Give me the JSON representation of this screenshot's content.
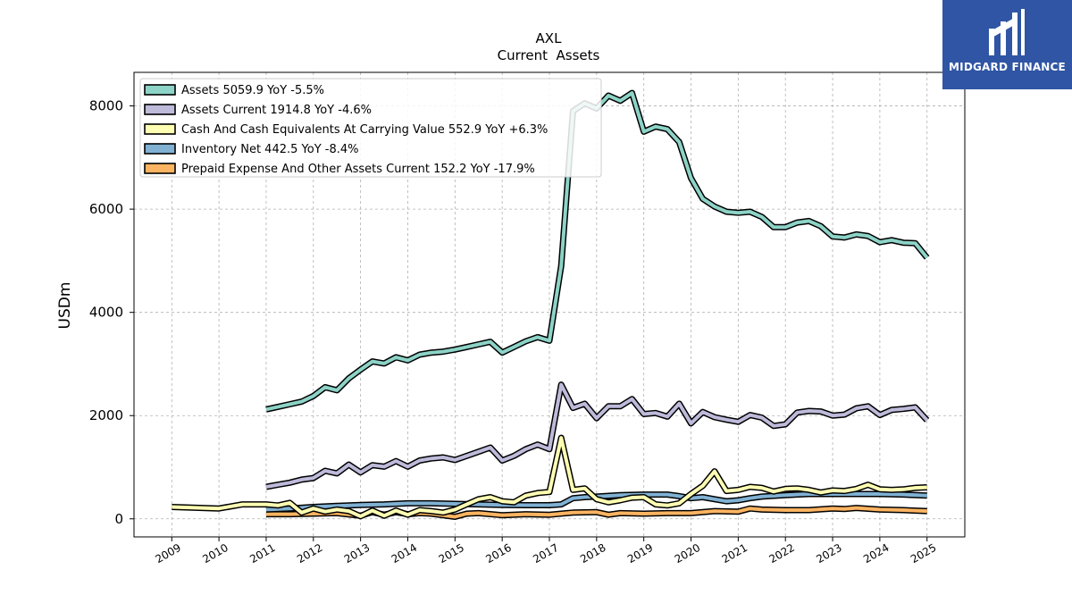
{
  "logo": {
    "text": "MIDGARD FINANCE",
    "icon": "midgard-logo-icon",
    "background": "#2f55a4"
  },
  "chart_data": {
    "type": "line",
    "title": "AXL",
    "subtitle": "Current  Assets",
    "ylabel": "USDm",
    "xlabel": "",
    "ylim": [
      -350,
      8650
    ],
    "xlim": [
      2008.2,
      2025.8
    ],
    "yticks": [
      0,
      2000,
      4000,
      6000,
      8000
    ],
    "xticks": [
      "2009",
      "2010",
      "2011",
      "2012",
      "2013",
      "2014",
      "2015",
      "2016",
      "2017",
      "2018",
      "2019",
      "2020",
      "2021",
      "2022",
      "2023",
      "2024",
      "2025"
    ],
    "grid": true,
    "legend_position": "top-left",
    "series": [
      {
        "name": "Assets",
        "legend": "Assets  5059.9 YoY -5.5%",
        "color": "#8dd3c7",
        "x": [
          2011.0,
          2011.25,
          2011.5,
          2011.75,
          2012.0,
          2012.25,
          2012.5,
          2012.75,
          2013.0,
          2013.25,
          2013.5,
          2013.75,
          2014.0,
          2014.25,
          2014.5,
          2014.75,
          2015.0,
          2015.25,
          2015.5,
          2015.75,
          2016.0,
          2016.25,
          2016.5,
          2016.75,
          2017.0,
          2017.25,
          2017.5,
          2017.75,
          2018.0,
          2018.25,
          2018.5,
          2018.75,
          2019.0,
          2019.25,
          2019.5,
          2019.75,
          2020.0,
          2020.25,
          2020.5,
          2020.75,
          2021.0,
          2021.25,
          2021.5,
          2021.75,
          2022.0,
          2022.25,
          2022.5,
          2022.75,
          2023.0,
          2023.25,
          2023.5,
          2023.75,
          2024.0,
          2024.25,
          2024.5,
          2024.75,
          2025.0
        ],
        "y": [
          2120,
          2170,
          2220,
          2270,
          2380,
          2550,
          2490,
          2720,
          2890,
          3050,
          3010,
          3130,
          3070,
          3180,
          3220,
          3240,
          3280,
          3330,
          3380,
          3430,
          3220,
          3330,
          3440,
          3520,
          3450,
          4900,
          7900,
          8050,
          7950,
          8200,
          8100,
          8250,
          7500,
          7600,
          7550,
          7300,
          6600,
          6200,
          6050,
          5950,
          5930,
          5950,
          5850,
          5650,
          5650,
          5740,
          5770,
          5670,
          5470,
          5450,
          5510,
          5480,
          5360,
          5400,
          5350,
          5340,
          5060
        ]
      },
      {
        "name": "Assets Current",
        "legend": "Assets Current  1914.8 YoY -4.6%",
        "color": "#bebada",
        "x": [
          2011.0,
          2011.25,
          2011.5,
          2011.75,
          2012.0,
          2012.25,
          2012.5,
          2012.75,
          2013.0,
          2013.25,
          2013.5,
          2013.75,
          2014.0,
          2014.25,
          2014.5,
          2014.75,
          2015.0,
          2015.25,
          2015.5,
          2015.75,
          2016.0,
          2016.25,
          2016.5,
          2016.75,
          2017.0,
          2017.25,
          2017.5,
          2017.75,
          2018.0,
          2018.25,
          2018.5,
          2018.75,
          2019.0,
          2019.25,
          2019.5,
          2019.75,
          2020.0,
          2020.25,
          2020.5,
          2020.75,
          2021.0,
          2021.25,
          2021.5,
          2021.75,
          2022.0,
          2022.25,
          2022.5,
          2022.75,
          2023.0,
          2023.25,
          2023.5,
          2023.75,
          2024.0,
          2024.25,
          2024.5,
          2024.75,
          2025.0
        ],
        "y": [
          620,
          660,
          700,
          760,
          790,
          930,
          880,
          1050,
          900,
          1040,
          1010,
          1120,
          1010,
          1130,
          1170,
          1190,
          1140,
          1220,
          1300,
          1380,
          1130,
          1220,
          1350,
          1440,
          1350,
          2600,
          2150,
          2230,
          1950,
          2180,
          2180,
          2320,
          2030,
          2050,
          1980,
          2230,
          1850,
          2070,
          1970,
          1920,
          1880,
          2010,
          1960,
          1800,
          1830,
          2060,
          2090,
          2080,
          2000,
          2020,
          2140,
          2180,
          2010,
          2110,
          2130,
          2160,
          1910
        ]
      },
      {
        "name": "Cash And Cash Equivalents At Carrying Value",
        "legend": "Cash And Cash Equivalents At Carrying Value  552.9 YoY +6.3%",
        "color": "#ffffb3",
        "x": [
          2009.0,
          2010.0,
          2010.5,
          2011.0,
          2011.25,
          2011.5,
          2011.75,
          2012.0,
          2012.25,
          2012.5,
          2012.75,
          2013.0,
          2013.25,
          2013.5,
          2013.75,
          2014.0,
          2014.25,
          2014.5,
          2014.75,
          2015.0,
          2015.25,
          2015.5,
          2015.75,
          2016.0,
          2016.25,
          2016.5,
          2016.75,
          2017.0,
          2017.25,
          2017.5,
          2017.75,
          2018.0,
          2018.25,
          2018.5,
          2018.75,
          2019.0,
          2019.25,
          2019.5,
          2019.75,
          2020.0,
          2020.25,
          2020.5,
          2020.75,
          2021.0,
          2021.25,
          2021.5,
          2021.75,
          2022.0,
          2022.25,
          2022.5,
          2022.75,
          2023.0,
          2023.25,
          2023.5,
          2023.75,
          2024.0,
          2024.25,
          2024.5,
          2024.75,
          2025.0
        ],
        "y": [
          230,
          200,
          280,
          280,
          260,
          310,
          120,
          200,
          140,
          180,
          150,
          50,
          160,
          60,
          160,
          80,
          170,
          150,
          120,
          180,
          280,
          380,
          420,
          340,
          320,
          450,
          500,
          520,
          1570,
          560,
          590,
          380,
          320,
          360,
          410,
          420,
          280,
          260,
          300,
          480,
          640,
          920,
          540,
          560,
          620,
          600,
          530,
          580,
          590,
          560,
          510,
          550,
          540,
          580,
          660,
          570,
          560,
          570,
          600,
          610
        ]
      },
      {
        "name": "Inventory Net",
        "legend": "Inventory Net  442.5 YoY -8.4%",
        "color": "#80b1d3",
        "x": [
          2011.0,
          2011.5,
          2012.0,
          2012.5,
          2013.0,
          2013.5,
          2014.0,
          2014.5,
          2015.0,
          2015.5,
          2016.0,
          2016.5,
          2017.0,
          2017.25,
          2017.5,
          2017.75,
          2018.0,
          2018.5,
          2019.0,
          2019.5,
          2019.75,
          2020.0,
          2020.25,
          2020.5,
          2020.75,
          2021.0,
          2021.25,
          2021.5,
          2022.0,
          2022.5,
          2023.0,
          2023.5,
          2024.0,
          2024.5,
          2025.0
        ],
        "y": [
          180,
          200,
          230,
          250,
          270,
          280,
          300,
          300,
          290,
          280,
          270,
          265,
          265,
          280,
          400,
          420,
          430,
          460,
          470,
          470,
          440,
          400,
          420,
          380,
          340,
          360,
          400,
          430,
          460,
          480,
          480,
          480,
          480,
          470,
          450
        ]
      },
      {
        "name": "Prepaid Expense And Other Assets Current",
        "legend": "Prepaid Expense And Other Assets Current  152.2 YoY -17.9%",
        "color": "#fdb462",
        "x": [
          2011.0,
          2011.5,
          2012.0,
          2012.5,
          2013.0,
          2013.25,
          2013.5,
          2013.75,
          2014.0,
          2014.25,
          2014.5,
          2015.0,
          2015.25,
          2015.5,
          2016.0,
          2016.5,
          2017.0,
          2017.5,
          2018.0,
          2018.25,
          2018.5,
          2019.0,
          2019.5,
          2020.0,
          2020.5,
          2021.0,
          2021.25,
          2021.5,
          2022.0,
          2022.5,
          2023.0,
          2023.25,
          2023.5,
          2024.0,
          2024.5,
          2025.0
        ],
        "y": [
          90,
          90,
          100,
          110,
          60,
          130,
          80,
          130,
          90,
          110,
          100,
          40,
          100,
          110,
          70,
          90,
          80,
          120,
          130,
          80,
          110,
          100,
          110,
          110,
          150,
          140,
          200,
          180,
          170,
          170,
          200,
          190,
          210,
          180,
          170,
          150
        ]
      }
    ]
  }
}
